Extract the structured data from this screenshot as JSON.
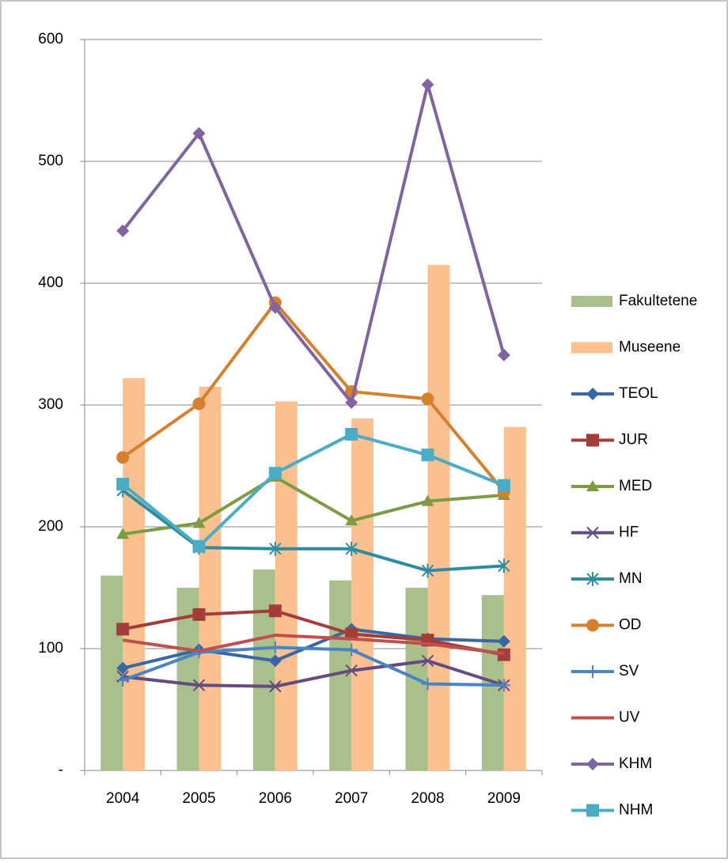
{
  "chart_data": {
    "type": "combo",
    "categories": [
      "2004",
      "2005",
      "2006",
      "2007",
      "2008",
      "2009"
    ],
    "ylim": [
      0,
      600
    ],
    "yticks": [
      {
        "value": 0,
        "label": "-"
      },
      100,
      200,
      300,
      400,
      500,
      600
    ],
    "grid": true,
    "legend": "right",
    "series": [
      {
        "name": "Fakultetene",
        "kind": "bar",
        "color": "#a9c08c",
        "values": [
          160,
          150,
          165,
          156,
          150,
          144
        ]
      },
      {
        "name": "Museene",
        "kind": "bar",
        "color": "#fac090",
        "values": [
          322,
          315,
          303,
          289,
          415,
          282
        ]
      },
      {
        "name": "TEOL",
        "kind": "line",
        "marker": "diamond",
        "color": "#3867a6",
        "values": [
          84,
          99,
          90,
          116,
          108,
          106
        ]
      },
      {
        "name": "JUR",
        "kind": "line",
        "marker": "square",
        "color": "#a33d3a",
        "values": [
          116,
          128,
          131,
          112,
          107,
          95
        ]
      },
      {
        "name": "MED",
        "kind": "line",
        "marker": "triangle",
        "color": "#7e9a42",
        "values": [
          194,
          203,
          241,
          205,
          221,
          226
        ]
      },
      {
        "name": "HF",
        "kind": "line",
        "marker": "x",
        "color": "#634c80",
        "values": [
          77,
          70,
          69,
          82,
          90,
          70
        ]
      },
      {
        "name": "MN",
        "kind": "line",
        "marker": "star",
        "color": "#2f8ba0",
        "values": [
          230,
          183,
          182,
          182,
          164,
          168
        ]
      },
      {
        "name": "OD",
        "kind": "line",
        "marker": "circle",
        "color": "#d67f2d",
        "values": [
          257,
          301,
          384,
          311,
          305,
          229
        ]
      },
      {
        "name": "SV",
        "kind": "line",
        "marker": "plus",
        "color": "#4a84c4",
        "values": [
          74,
          97,
          101,
          99,
          71,
          70
        ]
      },
      {
        "name": "UV",
        "kind": "line",
        "marker": "none",
        "color": "#c0504d",
        "values": [
          107,
          98,
          111,
          108,
          104,
          96
        ]
      },
      {
        "name": "KHM",
        "kind": "line",
        "marker": "diamond",
        "color": "#8064a2",
        "values": [
          443,
          523,
          380,
          302,
          563,
          341
        ]
      },
      {
        "name": "NHM",
        "kind": "line",
        "marker": "square",
        "color": "#4bacc6",
        "values": [
          235,
          184,
          244,
          276,
          259,
          234
        ]
      }
    ]
  }
}
